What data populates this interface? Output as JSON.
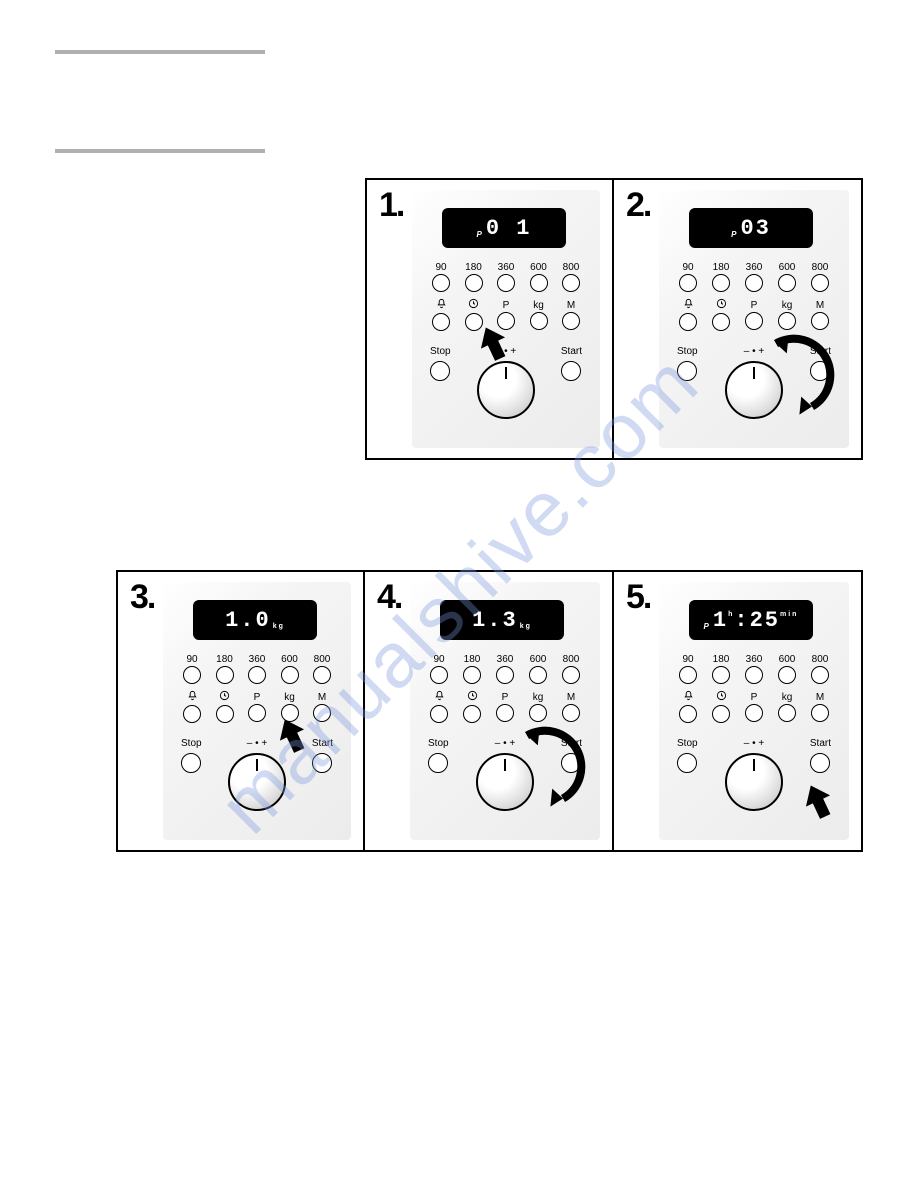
{
  "watermark": "manualshive.com",
  "button_labels_row1": [
    "90",
    "180",
    "360",
    "600",
    "800"
  ],
  "button_labels_row2_icons": [
    "bell",
    "clock"
  ],
  "button_labels_row2_text": [
    "P",
    "kg",
    "M"
  ],
  "stop_label": "Stop",
  "start_label": "Start",
  "knob_label": "– • +",
  "steps": [
    {
      "num": "1.",
      "display_prefix": "P",
      "display_text": "0 1",
      "display_suffix": "",
      "arrow": {
        "type": "up",
        "target": "P"
      }
    },
    {
      "num": "2.",
      "display_prefix": "P",
      "display_text": "03",
      "display_suffix": "",
      "arrow": {
        "type": "curve",
        "target": "knob"
      }
    },
    {
      "num": "3.",
      "display_prefix": "",
      "display_text": "1.0",
      "display_suffix": "kg",
      "arrow": {
        "type": "up",
        "target": "kg"
      }
    },
    {
      "num": "4.",
      "display_prefix": "",
      "display_text": "1.3",
      "display_suffix": "kg",
      "arrow": {
        "type": "curve",
        "target": "knob"
      }
    },
    {
      "num": "5.",
      "display_prefix": "P",
      "display_text": "1:25",
      "display_h": "h",
      "display_min": "min",
      "arrow": {
        "type": "up",
        "target": "start"
      }
    }
  ],
  "colors": {
    "border": "#000000",
    "bg": "#ffffff",
    "display_bg": "#000000",
    "display_fg": "#ffffff",
    "bar": "#b0b0b0"
  }
}
